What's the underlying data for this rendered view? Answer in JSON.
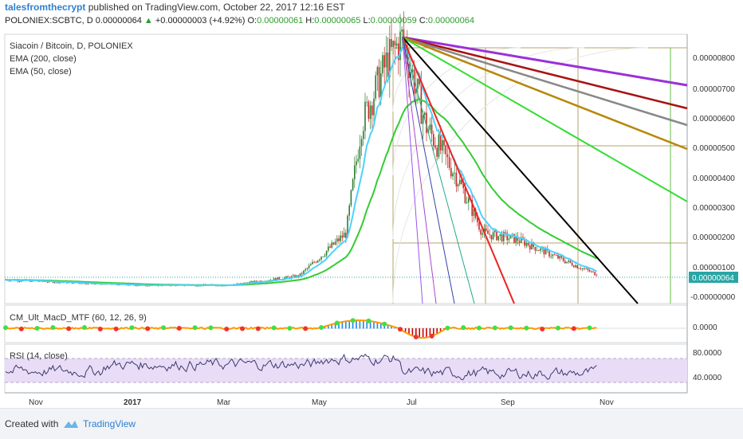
{
  "header": {
    "author": "talesfromthecrypt",
    "published": "published on TradingView.com, October 22, 2017 12:16 EST",
    "symbol_line_prefix": "POLONIEX:SCBTC, D",
    "last": "0.00000064",
    "change": "+0.00000003 (+4.92%)",
    "o_label": "O:",
    "o": "0.00000061",
    "h_label": "H:",
    "h": "0.00000065",
    "l_label": "L:",
    "l": "0.00000059",
    "c_label": "C:",
    "c": "0.00000064"
  },
  "legend": {
    "main": "Siacoin / Bitcoin, D, POLONIEX",
    "ema200": "EMA (200, close)",
    "ema50": "EMA (50, close)",
    "macd": "CM_Ult_MacD_MTF (60, 12, 26, 9)",
    "rsi": "RSI (14, close)"
  },
  "price_axis": {
    "ticks": [
      "0.00000800",
      "0.00000700",
      "0.00000600",
      "0.00000500",
      "0.00000400",
      "0.00000300",
      "0.00000200",
      "0.00000100",
      "-0.00000000"
    ],
    "last_badge": "0.00000064"
  },
  "macd_axis": {
    "ticks": [
      "0.0000"
    ]
  },
  "rsi_axis": {
    "ticks": [
      "80.0000",
      "40.0000"
    ]
  },
  "time_axis": {
    "ticks": [
      "Nov",
      "2017",
      "Mar",
      "May",
      "Jul",
      "Sep",
      "Nov"
    ]
  },
  "footer": {
    "created": "Created with",
    "brand": "TradingView"
  },
  "colors": {
    "ema50": "#4dd2ff",
    "ema200": "#33cc33",
    "up": "#2e7d32",
    "down": "#c62828",
    "fan_purple": "#9b30d9",
    "fan_red": "#aa1111",
    "fan_grey": "#888888",
    "fan_brown": "#b8860b",
    "fan_green": "#33dd33",
    "fan_black": "#000000",
    "fan_bright_red": "#ee2222",
    "rsi_band": "#e9dcf7"
  },
  "chart_data": {
    "type": "candlestick",
    "title": "Siacoin / Bitcoin, D, POLONIEX",
    "price_range": [
      -3e-07,
      8.5e-06
    ],
    "peak_price": 8.4e-06,
    "current_price": 6.4e-07,
    "key_points": [
      {
        "date": "2016-10",
        "price": 5e-07
      },
      {
        "date": "2017-01",
        "price": 3e-07
      },
      {
        "date": "2017-03",
        "price": 3e-07
      },
      {
        "date": "2017-04-15",
        "price": 6e-07
      },
      {
        "date": "2017-05-15",
        "price": 2e-06
      },
      {
        "date": "2017-05-25",
        "price": 5.6e-06
      },
      {
        "date": "2017-06-10",
        "price": 7.6e-06
      },
      {
        "date": "2017-06-20",
        "price": 8.4e-06
      },
      {
        "date": "2017-07-05",
        "price": 5.5e-06
      },
      {
        "date": "2017-07-25",
        "price": 3.8e-06
      },
      {
        "date": "2017-08-10",
        "price": 2e-06
      },
      {
        "date": "2017-09-01",
        "price": 1.8e-06
      },
      {
        "date": "2017-10-01",
        "price": 1.1e-06
      },
      {
        "date": "2017-10-22",
        "price": 6.4e-07
      }
    ],
    "series": [
      {
        "name": "EMA (200, close)"
      },
      {
        "name": "EMA (50, close)"
      }
    ],
    "rsi_range": [
      0,
      100
    ],
    "rsi_levels": [
      70,
      30
    ]
  }
}
